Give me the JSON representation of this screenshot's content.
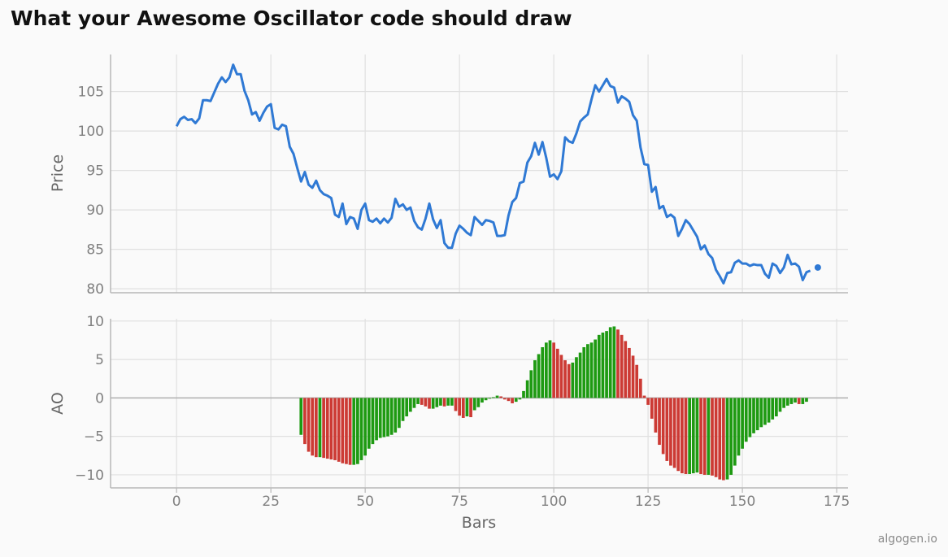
{
  "title": "What your Awesome Oscillator code should draw",
  "watermark": "algogen.io",
  "chart_data": [
    {
      "type": "line",
      "ylabel": "Price",
      "xlim": [
        -17.5,
        178
      ],
      "ylim": [
        79.5,
        109.7
      ],
      "yticks": [
        80,
        85,
        90,
        95,
        100,
        105
      ],
      "grid": true,
      "color": "#2f79d4",
      "x_start": 0,
      "values": [
        100.6,
        101.5,
        101.8,
        101.4,
        101.5,
        101.0,
        101.6,
        103.9,
        103.9,
        103.8,
        104.9,
        106.0,
        106.8,
        106.2,
        106.8,
        108.4,
        107.2,
        107.2,
        105.1,
        103.9,
        102.1,
        102.4,
        101.3,
        102.3,
        103.1,
        103.4,
        100.4,
        100.2,
        100.8,
        100.6,
        98.0,
        97.1,
        95.3,
        93.6,
        94.8,
        93.2,
        92.8,
        93.7,
        92.5,
        92.0,
        91.8,
        91.5,
        89.4,
        89.1,
        90.8,
        88.2,
        89.1,
        88.9,
        87.6,
        90.0,
        90.8,
        88.7,
        88.5,
        88.9,
        88.3,
        88.9,
        88.4,
        89.0,
        91.4,
        90.4,
        90.7,
        90.0,
        90.3,
        88.6,
        87.8,
        87.5,
        88.9,
        90.8,
        88.8,
        87.7,
        88.7,
        85.8,
        85.2,
        85.2,
        87.0,
        88.0,
        87.6,
        87.1,
        86.8,
        89.1,
        88.6,
        88.1,
        88.7,
        88.6,
        88.4,
        86.7,
        86.7,
        86.8,
        89.3,
        91.0,
        91.5,
        93.4,
        93.6,
        96.0,
        96.8,
        98.5,
        97.0,
        98.6,
        96.6,
        94.2,
        94.5,
        93.9,
        94.9,
        99.2,
        98.7,
        98.5,
        99.7,
        101.2,
        101.7,
        102.1,
        104.0,
        105.8,
        105.0,
        105.8,
        106.6,
        105.7,
        105.5,
        103.6,
        104.4,
        104.1,
        103.7,
        102.0,
        101.3,
        97.9,
        95.8,
        95.7,
        92.3,
        92.9,
        90.2,
        90.5,
        89.1,
        89.4,
        89.0,
        86.7,
        87.6,
        88.7,
        88.2,
        87.4,
        86.6,
        85.0,
        85.5,
        84.4,
        83.9,
        82.4,
        81.6,
        80.7,
        82.0,
        82.1,
        83.3,
        83.6,
        83.2,
        83.2,
        82.9,
        83.1,
        83.0,
        83.0,
        81.9,
        81.4,
        83.2,
        82.9,
        82.0,
        82.7,
        84.3,
        83.1,
        83.2,
        82.8,
        81.1,
        82.1,
        82.3,
        null,
        82.7
      ]
    },
    {
      "type": "bar",
      "ylabel": "AO",
      "xlabel": "Bars",
      "xlim": [
        -17.5,
        178
      ],
      "ylim": [
        -11.7,
        10.3
      ],
      "yticks": [
        -10,
        -5,
        0,
        5,
        10
      ],
      "xticks": [
        0,
        25,
        50,
        75,
        100,
        125,
        150,
        175
      ],
      "grid": true,
      "colors": {
        "up": "#1e9a12",
        "down": "#cc3a34"
      },
      "x_start": 33,
      "values": [
        -4.8,
        -6.0,
        -7.0,
        -7.5,
        -7.7,
        -7.7,
        -7.8,
        -7.9,
        -8.0,
        -8.1,
        -8.3,
        -8.5,
        -8.6,
        -8.7,
        -8.7,
        -8.6,
        -8.1,
        -7.5,
        -6.6,
        -6.0,
        -5.5,
        -5.2,
        -5.1,
        -5.0,
        -4.8,
        -4.5,
        -3.9,
        -3.0,
        -2.4,
        -1.8,
        -1.3,
        -0.8,
        -0.9,
        -1.1,
        -1.4,
        -1.4,
        -1.2,
        -1.0,
        -1.1,
        -1.0,
        -1.0,
        -1.7,
        -2.3,
        -2.6,
        -2.4,
        -2.5,
        -1.6,
        -1.2,
        -0.6,
        -0.3,
        -0.1,
        0.1,
        0.3,
        0.2,
        -0.2,
        -0.4,
        -0.7,
        -0.5,
        -0.2,
        0.9,
        2.3,
        3.6,
        4.9,
        5.7,
        6.6,
        7.2,
        7.5,
        7.2,
        6.4,
        5.6,
        4.9,
        4.4,
        4.6,
        5.3,
        5.9,
        6.6,
        7.0,
        7.2,
        7.6,
        8.2,
        8.5,
        8.7,
        9.2,
        9.3,
        8.9,
        8.2,
        7.4,
        6.5,
        5.5,
        4.3,
        2.5,
        0.3,
        -0.9,
        -2.7,
        -4.5,
        -6.1,
        -7.3,
        -8.2,
        -8.8,
        -9.1,
        -9.5,
        -9.8,
        -9.9,
        -9.9,
        -9.8,
        -9.7,
        -9.9,
        -10.0,
        -10.0,
        -10.1,
        -10.3,
        -10.6,
        -10.7,
        -10.6,
        -10.0,
        -8.8,
        -7.5,
        -6.6,
        -5.7,
        -5.1,
        -4.6,
        -4.2,
        -3.8,
        -3.5,
        -3.2,
        -2.8,
        -2.4,
        -1.8,
        -1.3,
        -1.0,
        -0.8,
        -0.6,
        -0.8,
        -0.8,
        -0.5
      ]
    }
  ]
}
